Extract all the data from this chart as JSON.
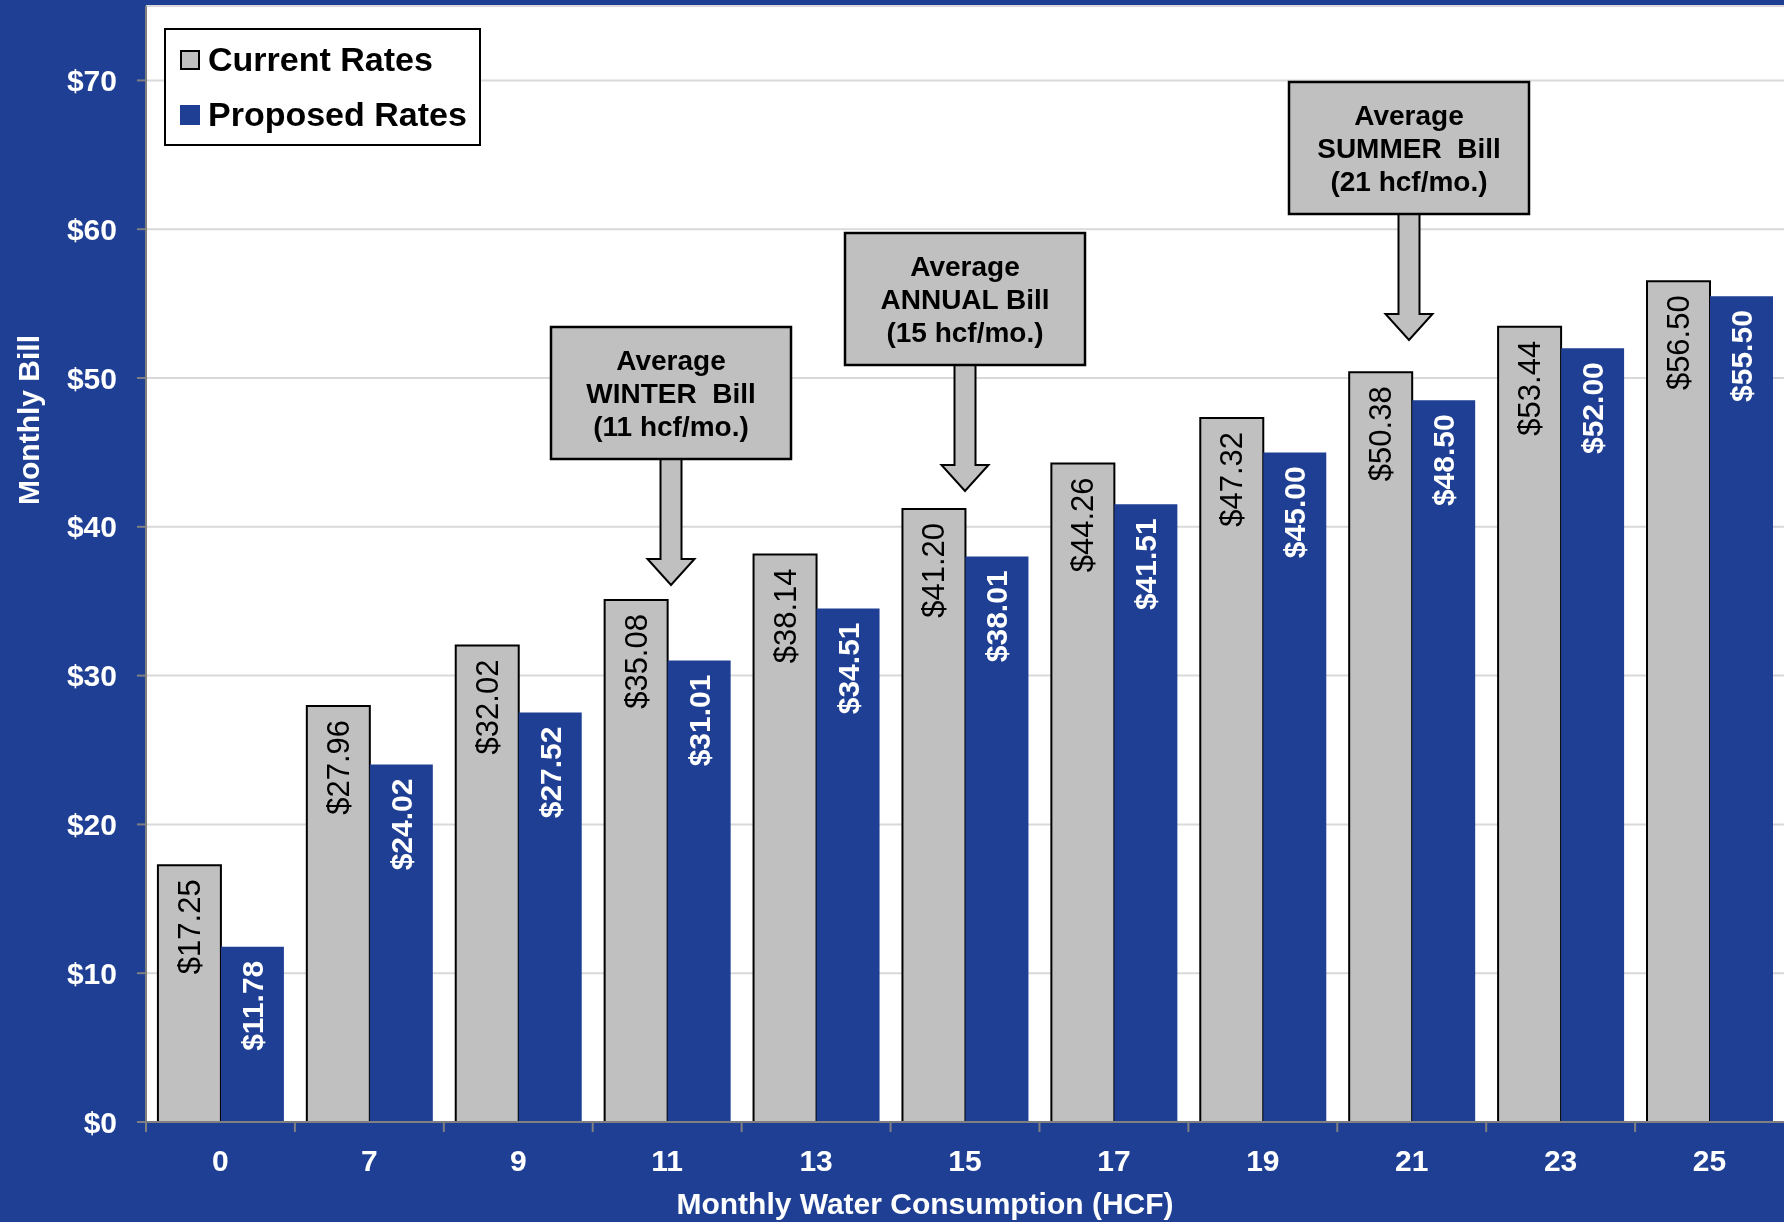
{
  "chart_data": {
    "type": "bar",
    "xlabel": "Monthly Water Consumption (HCF)",
    "ylabel": "Monthly Bill",
    "categories": [
      "0",
      "7",
      "9",
      "11",
      "13",
      "15",
      "17",
      "19",
      "21",
      "23",
      "25"
    ],
    "series": [
      {
        "name": "Current Rates",
        "color": "#c0c0c0",
        "values": [
          17.25,
          27.96,
          32.02,
          35.08,
          38.14,
          41.2,
          44.26,
          47.32,
          50.38,
          53.44,
          56.5
        ],
        "value_labels": [
          "$17.25",
          "$27.96",
          "$32.02",
          "$35.08",
          "$38.14",
          "$41.20",
          "$44.26",
          "$47.32",
          "$50.38",
          "$53.44",
          "$56.50"
        ]
      },
      {
        "name": "Proposed Rates",
        "color": "#1e3f94",
        "values": [
          11.78,
          24.02,
          27.52,
          31.01,
          34.51,
          38.01,
          41.51,
          45.0,
          48.5,
          52.0,
          55.5
        ],
        "value_labels": [
          "$11.78",
          "$24.02",
          "$27.52",
          "$31.01",
          "$34.51",
          "$38.01",
          "$41.51",
          "$45.00",
          "$48.50",
          "$52.00",
          "$55.50"
        ]
      }
    ],
    "ylim": [
      0,
      75
    ],
    "yticks": [
      {
        "value": 0,
        "label": "$0"
      },
      {
        "value": 10,
        "label": "$10"
      },
      {
        "value": 20,
        "label": "$20"
      },
      {
        "value": 30,
        "label": "$30"
      },
      {
        "value": 40,
        "label": "$40"
      },
      {
        "value": 50,
        "label": "$50"
      },
      {
        "value": 60,
        "label": "$60"
      },
      {
        "value": 70,
        "label": "$70"
      }
    ],
    "grid": "y",
    "legend": "top left",
    "annotations": [
      "Average\nWINTER  Bill\n(11 hcf/mo.)",
      "Average\nANNUAL Bill\n(15 hcf/mo.)",
      "Average\nSUMMER  Bill\n(21 hcf/mo.)"
    ]
  }
}
